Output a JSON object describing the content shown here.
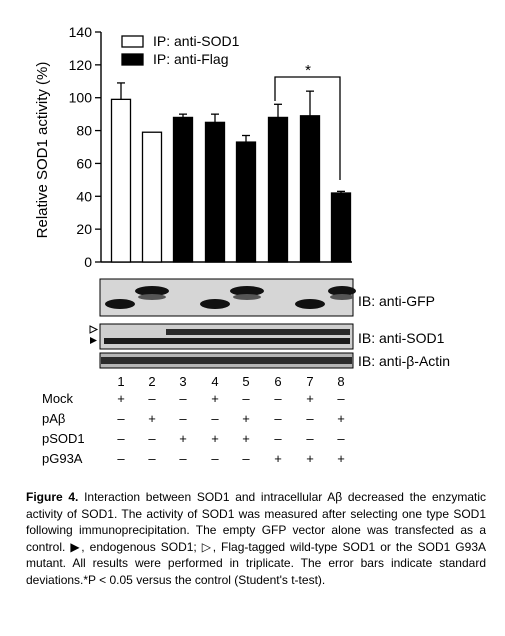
{
  "chart_data": {
    "type": "bar",
    "ylabel": "Relative SOD1 activity (%)",
    "ylim": [
      0,
      140
    ],
    "yticks": [
      0,
      20,
      40,
      60,
      80,
      100,
      120,
      140
    ],
    "categories": [
      "1",
      "2",
      "3",
      "4",
      "5",
      "6",
      "7",
      "8"
    ],
    "values": [
      99,
      79,
      88,
      85,
      73,
      88,
      89,
      42
    ],
    "errors": [
      10,
      0,
      2,
      5,
      4,
      8,
      15,
      1
    ],
    "ip": [
      "anti-SOD1",
      "anti-SOD1",
      "anti-Flag",
      "anti-Flag",
      "anti-Flag",
      "anti-Flag",
      "anti-Flag",
      "anti-Flag"
    ],
    "legend": [
      {
        "label": "IP: anti-SOD1",
        "fill": "#ffffff"
      },
      {
        "label": "IP: anti-Flag",
        "fill": "#000000"
      }
    ],
    "significance": {
      "label": "*",
      "between": [
        6,
        8
      ]
    },
    "grid": false
  },
  "blots": [
    {
      "label": "IB: anti-GFP"
    },
    {
      "label": "IB: anti-SOD1"
    },
    {
      "label": "IB: anti-β-Actin"
    }
  ],
  "lane_numbers": [
    "1",
    "2",
    "3",
    "4",
    "5",
    "6",
    "7",
    "8"
  ],
  "treatments": [
    {
      "label": "Mock",
      "signs": [
        "+",
        "–",
        "–",
        "+",
        "–",
        "–",
        "+",
        "–"
      ]
    },
    {
      "label": "pAβ",
      "signs": [
        "–",
        "+",
        "–",
        "–",
        "+",
        "–",
        "–",
        "+"
      ]
    },
    {
      "label": "pSOD1",
      "signs": [
        "–",
        "–",
        "+",
        "+",
        "+",
        "–",
        "–",
        "–"
      ]
    },
    {
      "label": "pG93A",
      "signs": [
        "–",
        "–",
        "–",
        "–",
        "–",
        "+",
        "+",
        "+"
      ]
    }
  ],
  "caption": {
    "label": "Figure 4.",
    "text": "Interaction between SOD1 and intracellular Aβ decreased the enzymatic activity of SOD1. The activity of SOD1 was measured after selecting one type SOD1 following immunoprecipitation. The empty GFP vector alone was transfected as a control. ▶, endogenous SOD1; ▷, Flag-tagged wild-type SOD1 or the SOD1 G93A mutant. All results were performed in triplicate. The error bars indicate standard deviations.*P < 0.05 versus the control (Student's t-test)."
  }
}
